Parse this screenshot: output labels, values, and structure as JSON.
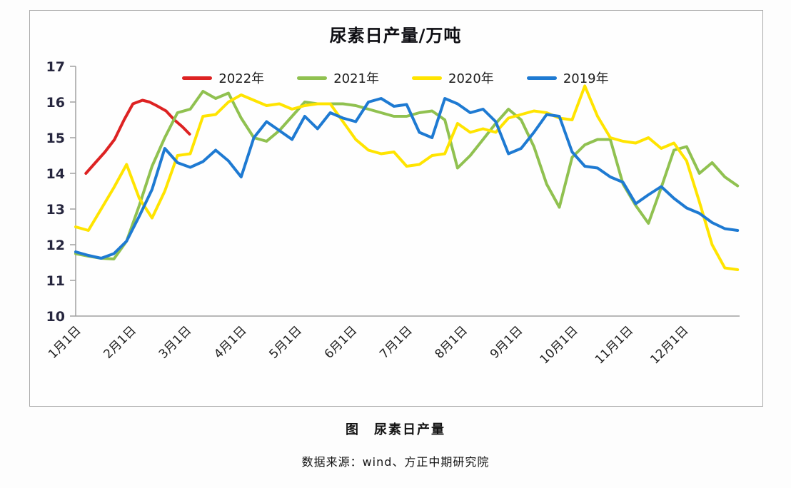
{
  "figure_caption": "图　尿素日产量",
  "source_caption": "数据来源：wind、方正中期研究院",
  "chart_data": {
    "type": "line",
    "title": "尿素日产量/万吨",
    "xlabel": "",
    "ylabel": "",
    "ylim": [
      10,
      17
    ],
    "y_ticks": [
      17,
      16,
      15,
      14,
      13,
      12,
      11,
      10
    ],
    "grid": false,
    "legend_position": "top",
    "x_unit": "weeks_from_jan1",
    "x_tick_labels": [
      "1月1日",
      "2月1日",
      "3月1日",
      "4月1日",
      "5月1日",
      "6月1日",
      "7月1日",
      "8月1日",
      "9月1日",
      "10月1日",
      "11月1日",
      "12月1日"
    ],
    "series": [
      {
        "name": "2022年",
        "color": "#dd2222",
        "x": [
          0.8,
          1.55,
          2.3,
          3.05,
          3.8,
          4.5,
          5.25,
          5.8,
          6.35,
          7.1,
          7.75,
          8.4,
          8.95
        ],
        "values": [
          14.0,
          14.3,
          14.6,
          14.95,
          15.5,
          15.95,
          16.05,
          16.0,
          15.9,
          15.75,
          15.5,
          15.3,
          15.1
        ]
      },
      {
        "name": "2021年",
        "color": "#90c150",
        "x_start": 0,
        "x_step": 1,
        "values": [
          11.75,
          11.68,
          11.62,
          11.6,
          12.1,
          13.1,
          14.2,
          15.0,
          15.7,
          15.8,
          16.3,
          16.1,
          16.25,
          15.55,
          15.0,
          14.9,
          15.2,
          15.6,
          16.0,
          15.95,
          15.95,
          15.95,
          15.9,
          15.8,
          15.7,
          15.6,
          15.6,
          15.7,
          15.75,
          15.5,
          14.15,
          14.5,
          14.95,
          15.4,
          15.8,
          15.5,
          14.75,
          13.7,
          13.05,
          14.45,
          14.8,
          14.95,
          14.95,
          13.7,
          13.1,
          12.6,
          13.6,
          14.65,
          14.75,
          14.0,
          14.3,
          13.9,
          13.65
        ]
      },
      {
        "name": "2020年",
        "color": "#ffe400",
        "x_start": 0,
        "x_step": 1,
        "values": [
          12.5,
          12.4,
          13.0,
          13.6,
          14.25,
          13.3,
          12.75,
          13.5,
          14.5,
          14.55,
          15.6,
          15.65,
          16.0,
          16.2,
          16.05,
          15.9,
          15.95,
          15.8,
          15.9,
          15.95,
          15.95,
          15.45,
          14.95,
          14.65,
          14.55,
          14.6,
          14.2,
          14.25,
          14.5,
          14.55,
          15.4,
          15.15,
          15.25,
          15.15,
          15.55,
          15.65,
          15.75,
          15.7,
          15.55,
          15.5,
          16.45,
          15.6,
          15.0,
          14.9,
          14.85,
          15.0,
          14.7,
          14.85,
          14.35,
          13.2,
          12.0,
          11.35,
          11.3
        ]
      },
      {
        "name": "2019年",
        "color": "#1e7ad2",
        "x_start": 0,
        "x_step": 1,
        "values": [
          11.8,
          11.7,
          11.62,
          11.75,
          12.1,
          12.8,
          13.55,
          14.7,
          14.3,
          14.17,
          14.33,
          14.65,
          14.35,
          13.9,
          15.0,
          15.45,
          15.2,
          14.95,
          15.6,
          15.25,
          15.7,
          15.55,
          15.45,
          16.0,
          16.1,
          15.88,
          15.93,
          15.15,
          15.0,
          16.1,
          15.95,
          15.7,
          15.8,
          15.45,
          14.55,
          14.7,
          15.15,
          15.65,
          15.6,
          14.6,
          14.2,
          14.15,
          13.9,
          13.75,
          13.15,
          13.4,
          13.63,
          13.3,
          13.03,
          12.88,
          12.62,
          12.45,
          12.4
        ]
      }
    ]
  }
}
